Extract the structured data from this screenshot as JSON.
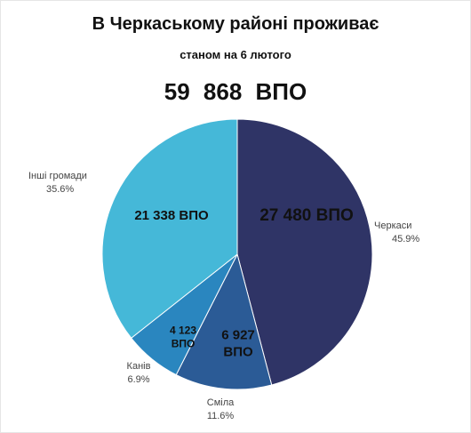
{
  "header": {
    "title": "В Черкаському районі проживає",
    "subtitle": "станом на 6 лютого",
    "total": "59 868   ВПО"
  },
  "chart_data": {
    "type": "pie",
    "title": "В Черкаському районі проживає",
    "subtitle": "станом на 6 лютого",
    "slices": [
      {
        "name": "Черкаси",
        "value": 27480,
        "percent_label": "45.9%",
        "value_label": "27 480 ВПО",
        "color": "#2f3466"
      },
      {
        "name": "Сміла",
        "value": 6927,
        "percent_label": "11.6%",
        "value_label": "6 927 ВПО",
        "color": "#2b5b96"
      },
      {
        "name": "Канів",
        "value": 4123,
        "percent_label": "6.9%",
        "value_label": "4 123 ВПО",
        "color": "#2a86bf"
      },
      {
        "name": "Інші громади",
        "value": 21338,
        "percent_label": "35.6%",
        "value_label": "21 338 ВПО",
        "color": "#45b8d8"
      }
    ]
  }
}
